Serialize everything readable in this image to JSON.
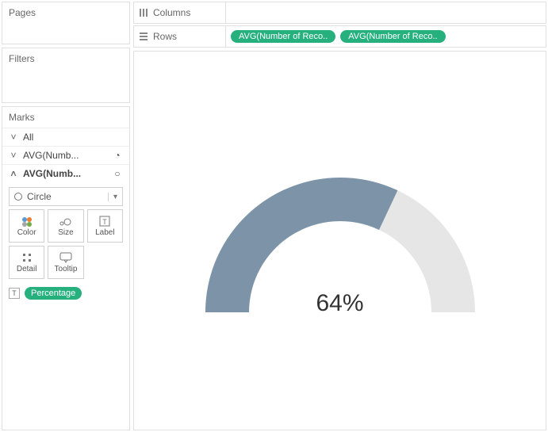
{
  "left": {
    "pages_title": "Pages",
    "filters_title": "Filters",
    "marks_title": "Marks",
    "rows": {
      "all": "All",
      "avg1": "AVG(Numb...",
      "avg2": "AVG(Numb..."
    },
    "mark_type_label": "Circle",
    "buttons": {
      "color": "Color",
      "size": "Size",
      "label": "Label",
      "detail": "Detail",
      "tooltip": "Tooltip"
    },
    "pill": "Percentage"
  },
  "shelves": {
    "columns_label": "Columns",
    "rows_label": "Rows",
    "row_pills": [
      "AVG(Number of Reco..",
      "AVG(Number of Reco.."
    ]
  },
  "gauge": {
    "type": "semi-donut",
    "percent": 64,
    "label": "64%",
    "label_fontsize": 30,
    "outer_radius": 170,
    "inner_radius": 115,
    "fill_color": "#7d94a8",
    "track_color": "#e6e6e6",
    "background": "#ffffff"
  },
  "colors": {
    "pill_bg": "#26b07e"
  }
}
